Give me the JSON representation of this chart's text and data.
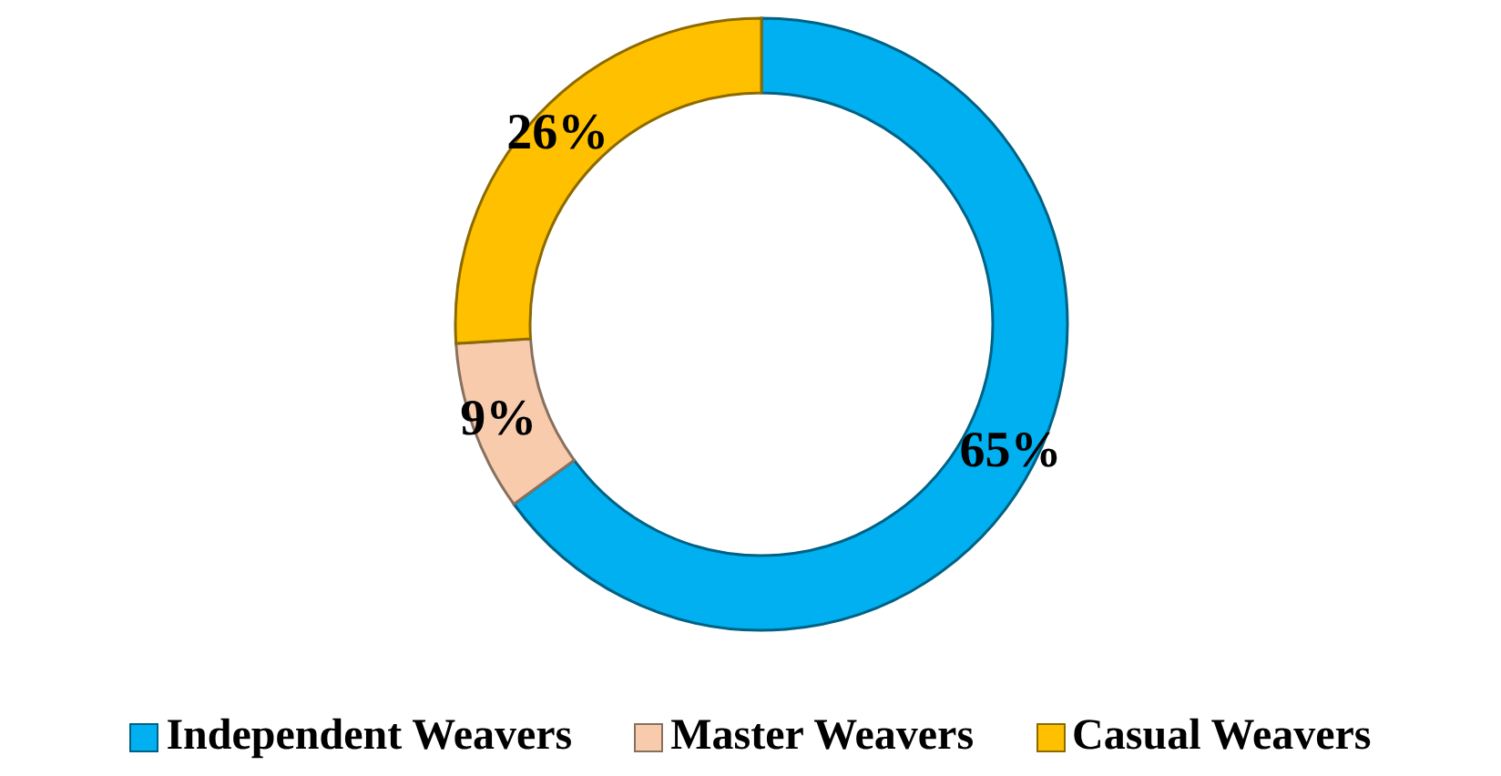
{
  "chart_data": {
    "type": "donut",
    "categories": [
      "Independent Weavers",
      "Master Weavers",
      "Casual Weavers"
    ],
    "values": [
      65,
      9,
      26
    ],
    "colors": [
      "#00b0f0",
      "#f8cbad",
      "#ffc000"
    ],
    "value_labels": [
      "65%",
      "9%",
      "26%"
    ],
    "legend": "bottom"
  }
}
